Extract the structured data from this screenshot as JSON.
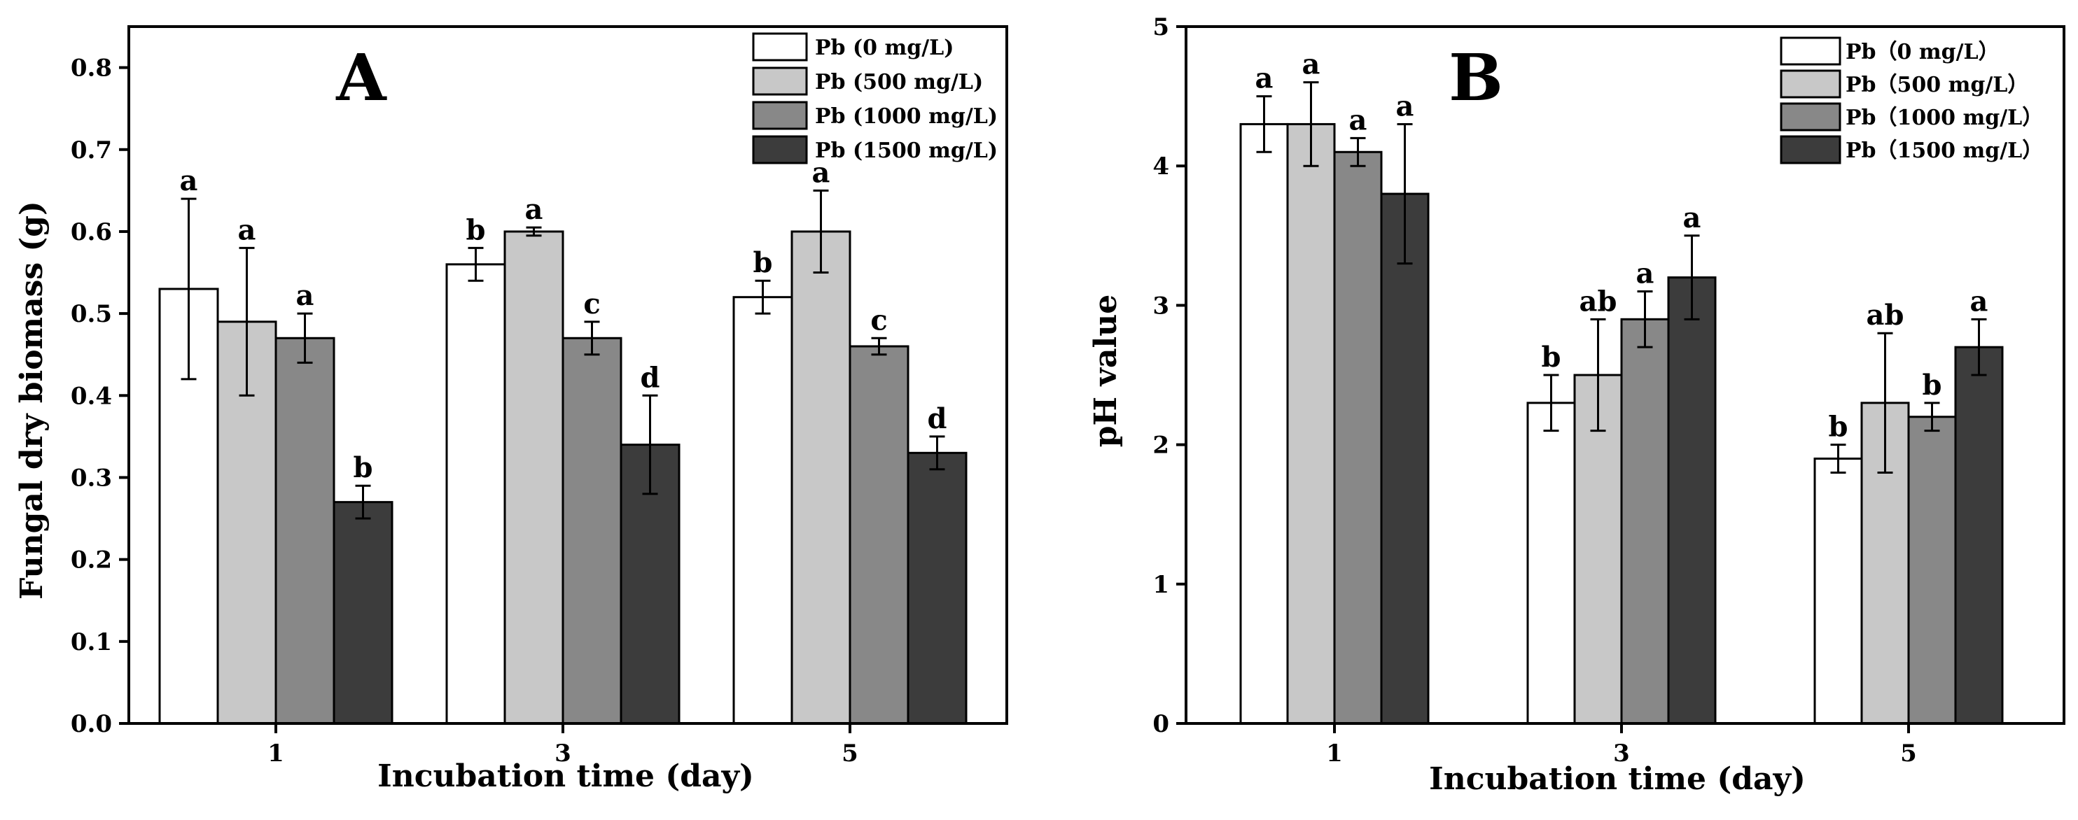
{
  "colors": {
    "pb0": "#ffffff",
    "pb500": "#c8c8c8",
    "pb1000": "#888888",
    "pb1500": "#3c3c3c"
  },
  "chart_data": [
    {
      "type": "bar",
      "panel": "A",
      "title": "",
      "xlabel": "Incubation time (day)",
      "ylabel": "Fungal dry biomass (g)",
      "ylim": [
        0,
        0.85
      ],
      "yticks": [
        "0.0",
        "0.1",
        "0.2",
        "0.3",
        "0.4",
        "0.5",
        "0.6",
        "0.7",
        "0.8"
      ],
      "categories": [
        "1",
        "3",
        "5"
      ],
      "legend_position": "top-right",
      "series": [
        {
          "name": "Pb (0 mg/L)",
          "color_key": "pb0",
          "values": [
            0.53,
            0.56,
            0.52
          ],
          "errors": [
            0.11,
            0.02,
            0.02
          ],
          "labels": [
            "a",
            "b",
            "b"
          ]
        },
        {
          "name": "Pb (500 mg/L)",
          "color_key": "pb500",
          "values": [
            0.49,
            0.6,
            0.6
          ],
          "errors": [
            0.09,
            0.005,
            0.05
          ],
          "labels": [
            "a",
            "a",
            "a"
          ]
        },
        {
          "name": "Pb (1000 mg/L)",
          "color_key": "pb1000",
          "values": [
            0.47,
            0.47,
            0.46
          ],
          "errors": [
            0.03,
            0.02,
            0.01
          ],
          "labels": [
            "a",
            "c",
            "c"
          ]
        },
        {
          "name": "Pb (1500 mg/L)",
          "color_key": "pb1500",
          "values": [
            0.27,
            0.34,
            0.33
          ],
          "errors": [
            0.02,
            0.06,
            0.02
          ],
          "labels": [
            "b",
            "d",
            "d"
          ]
        }
      ]
    },
    {
      "type": "bar",
      "panel": "B",
      "title": "",
      "xlabel": "Incubation time (day)",
      "ylabel": "pH value",
      "ylim": [
        0,
        5
      ],
      "yticks": [
        "0",
        "1",
        "2",
        "3",
        "4",
        "5"
      ],
      "categories": [
        "1",
        "3",
        "5"
      ],
      "legend_position": "top-right",
      "series": [
        {
          "name": "Pb（0 mg/L）",
          "color_key": "pb0",
          "values": [
            4.3,
            2.3,
            1.9
          ],
          "errors": [
            0.2,
            0.2,
            0.1
          ],
          "labels": [
            "a",
            "b",
            "b"
          ]
        },
        {
          "name": "Pb（500 mg/L）",
          "color_key": "pb500",
          "values": [
            4.3,
            2.5,
            2.3
          ],
          "errors": [
            0.3,
            0.4,
            0.5
          ],
          "labels": [
            "a",
            "ab",
            "ab"
          ]
        },
        {
          "name": "Pb（1000 mg/L）",
          "color_key": "pb1000",
          "values": [
            4.1,
            2.9,
            2.2
          ],
          "errors": [
            0.1,
            0.2,
            0.1
          ],
          "labels": [
            "a",
            "a",
            "b"
          ]
        },
        {
          "name": "Pb（1500 mg/L）",
          "color_key": "pb1500",
          "values": [
            3.8,
            3.2,
            2.7
          ],
          "errors": [
            0.5,
            0.3,
            0.2
          ],
          "labels": [
            "a",
            "a",
            "a"
          ]
        }
      ]
    }
  ]
}
